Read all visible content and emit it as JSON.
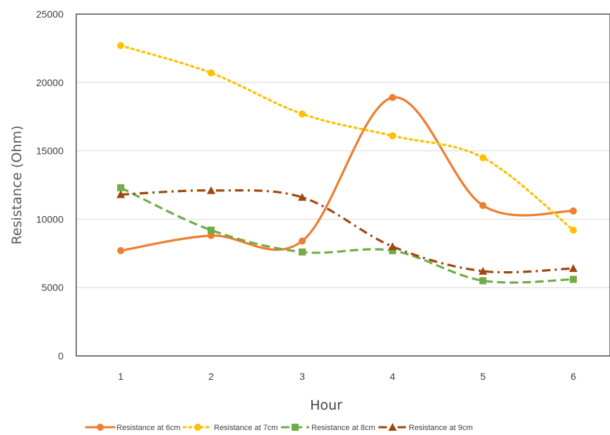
{
  "chart_data": {
    "type": "line",
    "title": "",
    "xlabel": "Hour",
    "ylabel": "Resistance (Ohm)",
    "categories": [
      "1",
      "2",
      "3",
      "4",
      "5",
      "6"
    ],
    "ylim": [
      0,
      25000
    ],
    "yticks": [
      "0",
      "5000",
      "10000",
      "15000",
      "20000",
      "25000"
    ],
    "grid": true,
    "legend_position": "bottom",
    "series": [
      {
        "name": "Resistance at 6cm",
        "values": [
          7700,
          8800,
          8400,
          18900,
          11000,
          10600
        ],
        "color": "#ED7D31",
        "dash": "solid",
        "marker": "circle",
        "smooth": true
      },
      {
        "name": "Resistance at 7cm",
        "values": [
          22700,
          20700,
          17700,
          16100,
          14500,
          9200
        ],
        "color": "#FFC000",
        "dash": "dot",
        "marker": "circle",
        "smooth": true
      },
      {
        "name": "Resistance at 8cm",
        "values": [
          12300,
          9200,
          7600,
          7700,
          5500,
          5600
        ],
        "color": "#70AD47",
        "dash": "dash",
        "marker": "square",
        "smooth": true
      },
      {
        "name": "Resistance at 9cm",
        "values": [
          11800,
          12100,
          11600,
          8000,
          6200,
          6400
        ],
        "color": "#9E480E",
        "dash": "dashdot",
        "marker": "triangle",
        "smooth": true
      }
    ]
  }
}
